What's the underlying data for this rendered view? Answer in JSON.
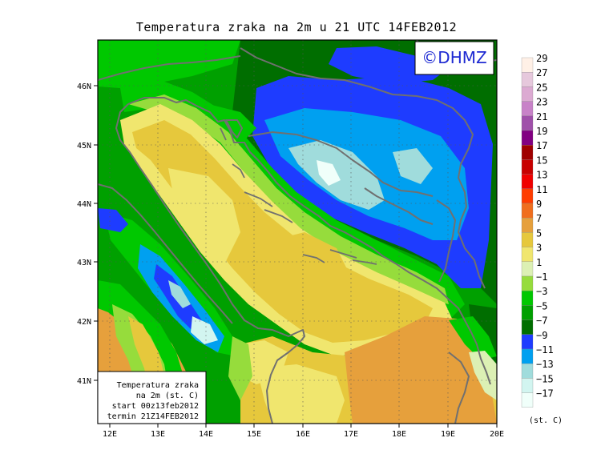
{
  "title": "Temperatura zraka na 2m u 21 UTC 14FEB2012",
  "watermark": "©DHMZ",
  "info_box": {
    "line1": "Temperatura zraka",
    "line2": "na 2m (st. C)",
    "line3": "start 00z13feb2012",
    "line4": "termin 21Z14FEB2012"
  },
  "axes": {
    "lon_ticks": [
      "12E",
      "13E",
      "14E",
      "15E",
      "16E",
      "17E",
      "18E",
      "19E",
      "20E"
    ],
    "lat_ticks": [
      "46N",
      "45N",
      "44N",
      "43N",
      "42N",
      "41N"
    ]
  },
  "colorbar": {
    "unit": "(st. C)",
    "labels": [
      "29",
      "27",
      "25",
      "23",
      "21",
      "19",
      "17",
      "15",
      "13",
      "11",
      "9",
      "7",
      "5",
      "3",
      "1",
      "−1",
      "−3",
      "−5",
      "−7",
      "−9",
      "−11",
      "−13",
      "−15",
      "−17"
    ],
    "colors": [
      "#fff0e6",
      "#e6c8dc",
      "#dcaad2",
      "#c882c8",
      "#a050aa",
      "#820082",
      "#a00000",
      "#c80000",
      "#f00000",
      "#ff3c00",
      "#f06e1e",
      "#e6a03c",
      "#e6c83c",
      "#f0e66e",
      "#dcf0b4",
      "#96dc3c",
      "#00c800",
      "#00a000",
      "#006e00",
      "#1e3cff",
      "#00a0f0",
      "#a0dcdc",
      "#d2f5f0",
      "#f0fffa"
    ]
  },
  "legend_colors": {
    "land_warm_orange": "#e6a03c",
    "yellow": "#e6c83c",
    "light_yellow": "#f0e66e",
    "pale_green": "#dcf0b4",
    "lime": "#96dc3c",
    "green": "#00c800",
    "mid_green": "#00a000",
    "dark_green": "#006e00",
    "blue": "#1e3cff",
    "sky_blue": "#00a0f0",
    "pale_blue": "#a0dcdc",
    "coast": "#707070"
  }
}
